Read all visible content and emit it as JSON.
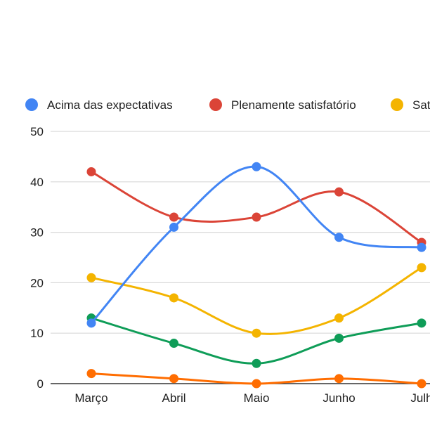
{
  "chart_data": {
    "type": "line",
    "title": "",
    "xlabel": "",
    "ylabel": "",
    "categories": [
      "Março",
      "Abril",
      "Maio",
      "Junho",
      "Julho"
    ],
    "category_labels_visible": [
      "Março",
      "Abril",
      "Maio",
      "Junho",
      "Julh"
    ],
    "ylim": [
      0,
      50
    ],
    "yticks": [
      0,
      10,
      20,
      30,
      40,
      50
    ],
    "grid": true,
    "legend_position": "top",
    "series": [
      {
        "name": "Acima das expectativas",
        "color": "#4285f4",
        "values": [
          12,
          31,
          43,
          29,
          27
        ]
      },
      {
        "name": "Plenamente satisfatório",
        "color": "#db4437",
        "values": [
          42,
          33,
          33,
          38,
          28
        ]
      },
      {
        "name": "Sat",
        "color": "#f4b400",
        "values": [
          21,
          17,
          10,
          13,
          23
        ]
      },
      {
        "name": "",
        "color": "#0f9d58",
        "values": [
          13,
          8,
          4,
          9,
          12
        ]
      },
      {
        "name": "",
        "color": "#ff6d01",
        "values": [
          2,
          1,
          0,
          1,
          0
        ]
      }
    ]
  }
}
